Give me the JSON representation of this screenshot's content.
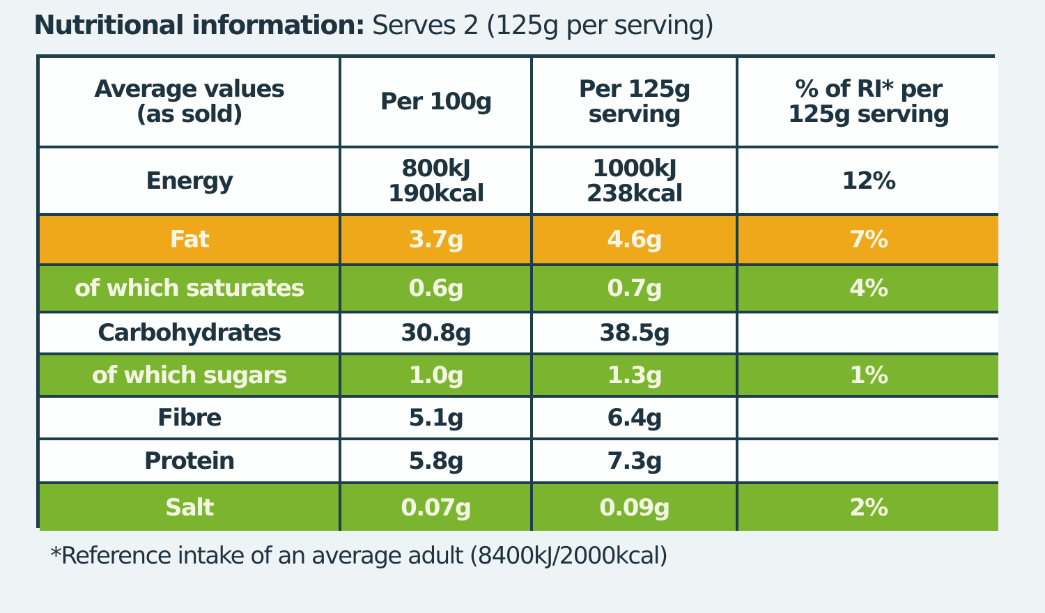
{
  "title": {
    "bold": "Nutritional information:",
    "rest": "Serves 2 (125g per serving)"
  },
  "table": {
    "header": [
      [
        "Average values",
        "(as sold)"
      ],
      [
        "Per 100g"
      ],
      [
        "Per 125g",
        "serving"
      ],
      [
        "% of RI* per",
        "125g serving"
      ]
    ],
    "rows": [
      {
        "color": "#fdfefe",
        "cells": [
          [
            "Energy"
          ],
          [
            "800kJ",
            "190kcal"
          ],
          [
            "1000kJ",
            "238kcal"
          ],
          [
            "12%"
          ]
        ]
      },
      {
        "color": "#eea81a",
        "cells": [
          [
            "Fat"
          ],
          [
            "3.7g"
          ],
          [
            "4.6g"
          ],
          [
            "7%"
          ]
        ]
      },
      {
        "color": "#7bb52f",
        "cells": [
          [
            "of which saturates"
          ],
          [
            "0.6g"
          ],
          [
            "0.7g"
          ],
          [
            "4%"
          ]
        ]
      },
      {
        "color": "#fdfefe",
        "cells": [
          [
            "Carbohydrates"
          ],
          [
            "30.8g"
          ],
          [
            "38.5g"
          ],
          null
        ]
      },
      {
        "color": "#7bb52f",
        "cells": [
          [
            "of which sugars"
          ],
          [
            "1.0g"
          ],
          [
            "1.3g"
          ],
          [
            "1%"
          ]
        ]
      },
      {
        "color": "#fdfefe",
        "cells": [
          [
            "Fibre"
          ],
          [
            "5.1g"
          ],
          [
            "6.4g"
          ],
          null
        ]
      },
      {
        "color": "#fdfefe",
        "cells": [
          [
            "Protein"
          ],
          [
            "5.8g"
          ],
          [
            "7.3g"
          ],
          null
        ]
      },
      {
        "color": "#7bb52f",
        "cells": [
          [
            "Salt"
          ],
          [
            "0.07g"
          ],
          [
            "0.09g"
          ],
          [
            "2%"
          ]
        ]
      }
    ]
  },
  "footnote": "*Reference intake of an average adult (8400kJ/2000kcal)"
}
